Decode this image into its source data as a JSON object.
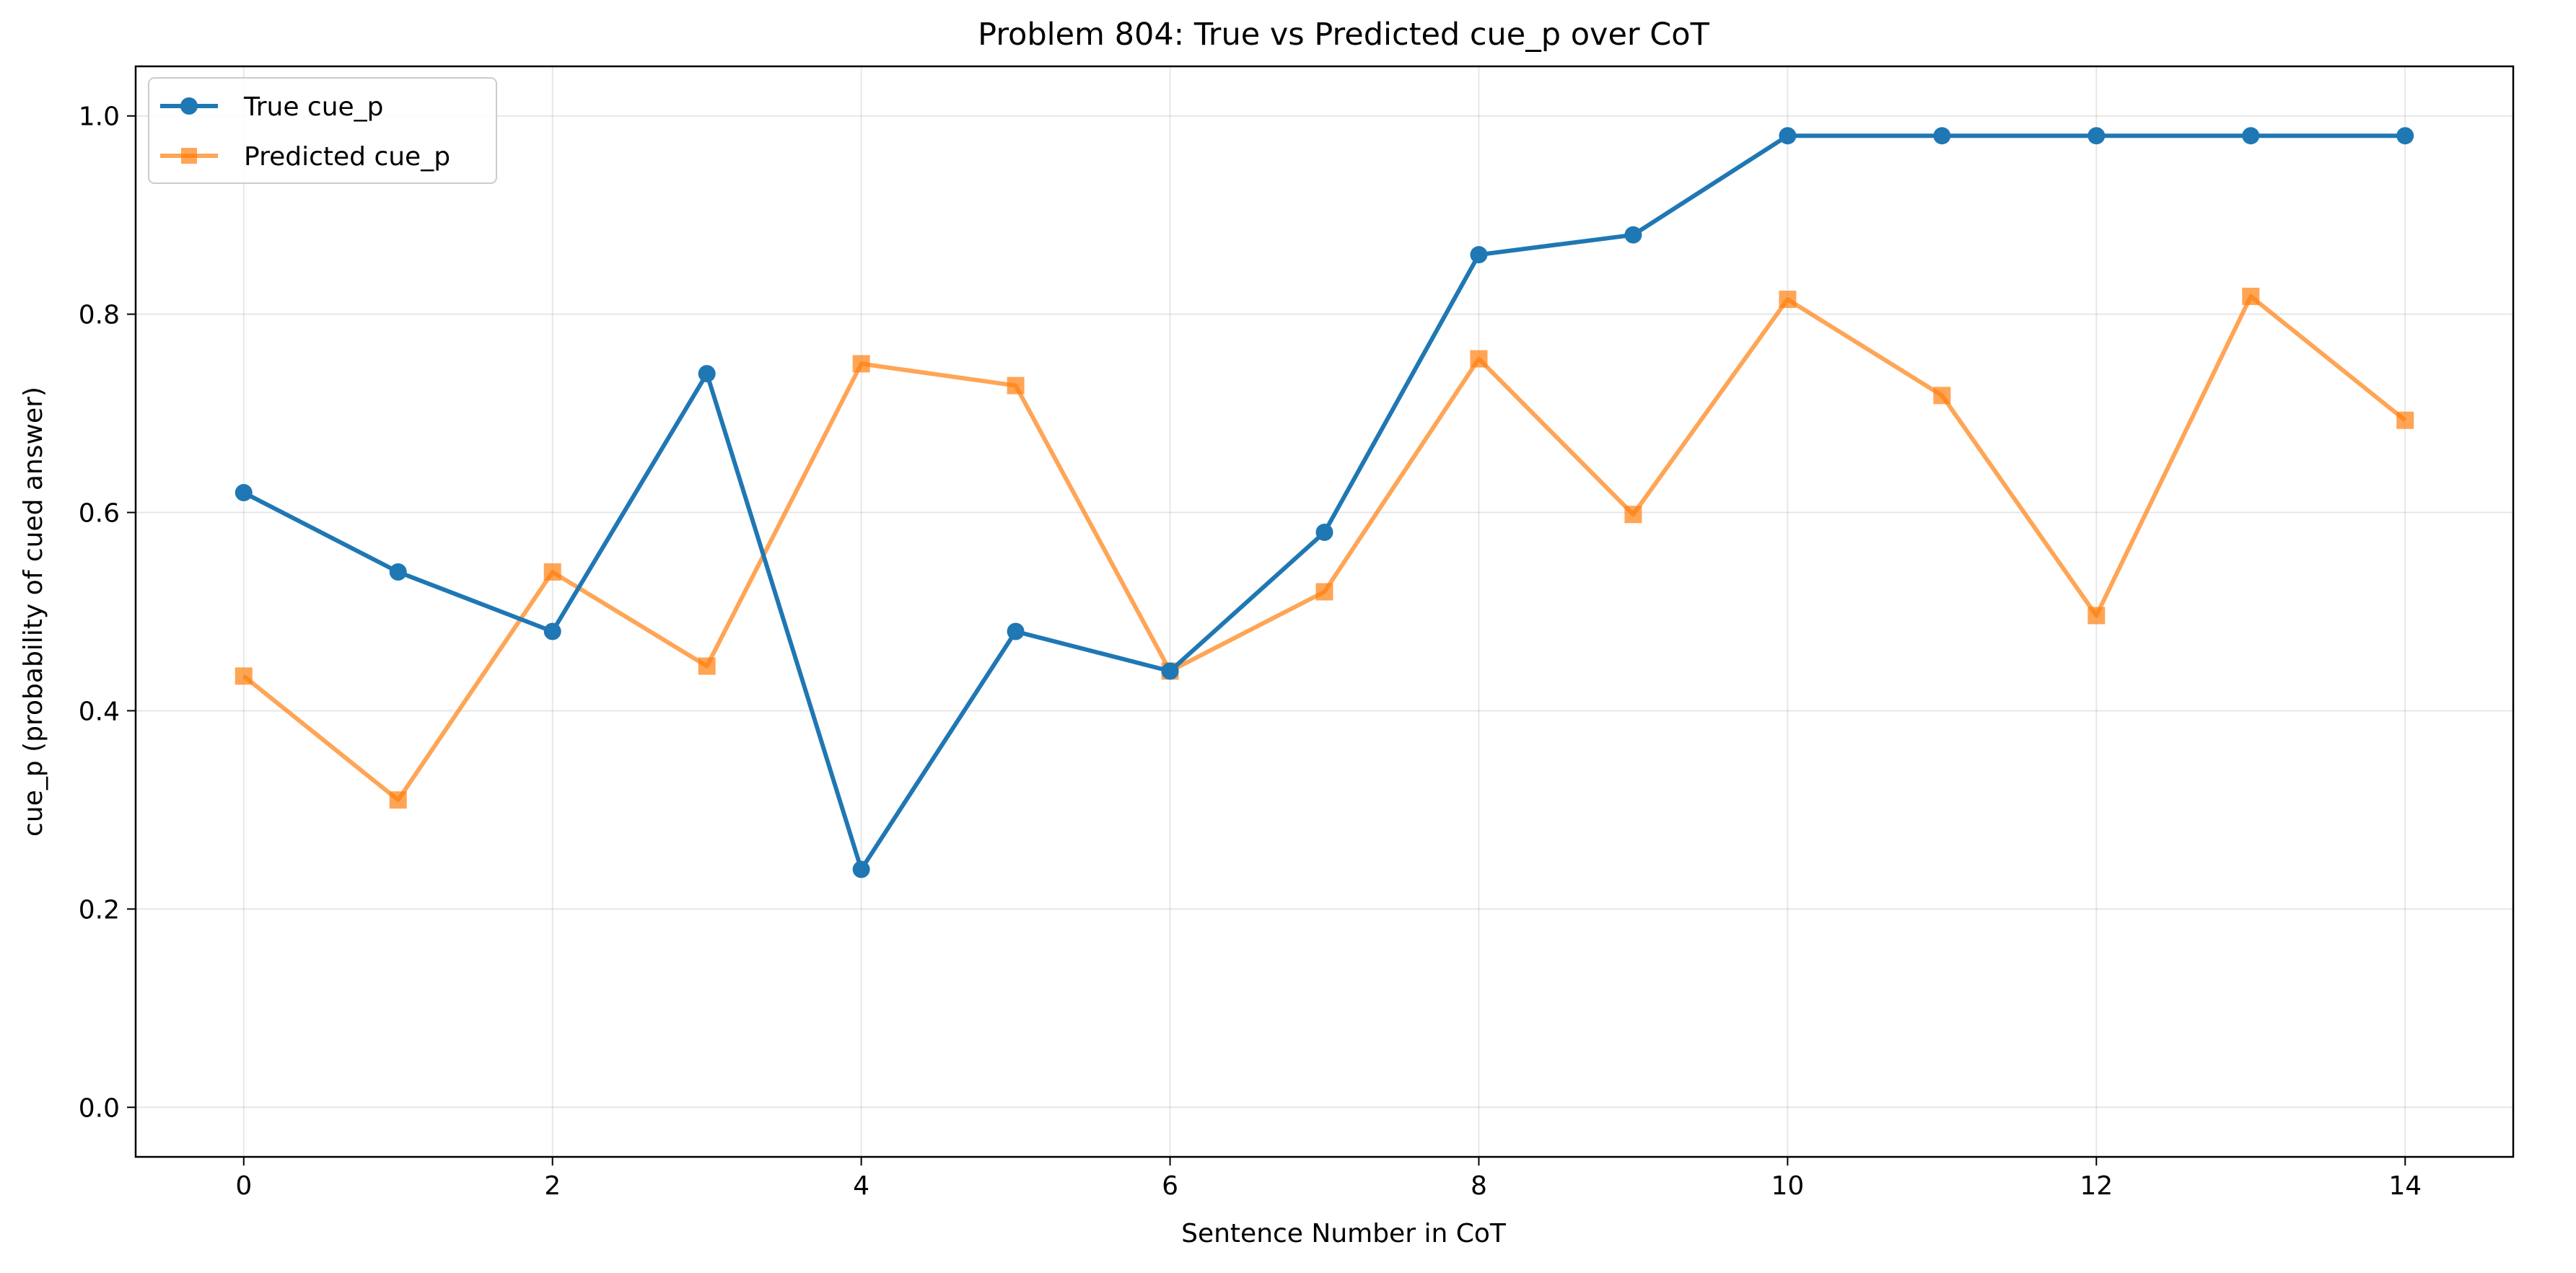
{
  "chart_data": {
    "type": "line",
    "title": "Problem 804: True vs Predicted cue_p over CoT",
    "xlabel": "Sentence Number in CoT",
    "ylabel": "cue_p (probability of cued answer)",
    "x": [
      0,
      1,
      2,
      3,
      4,
      5,
      6,
      7,
      8,
      9,
      10,
      11,
      12,
      13,
      14
    ],
    "xlim": [
      -0.7,
      14.7
    ],
    "ylim": [
      -0.05,
      1.05
    ],
    "xticks": [
      "0",
      "2",
      "4",
      "6",
      "8",
      "10",
      "12",
      "14"
    ],
    "xtick_values": [
      0,
      2,
      4,
      6,
      8,
      10,
      12,
      14
    ],
    "yticks": [
      "0.0",
      "0.2",
      "0.4",
      "0.6",
      "0.8",
      "1.0"
    ],
    "ytick_values": [
      0.0,
      0.2,
      0.4,
      0.6,
      0.8,
      1.0
    ],
    "grid": true,
    "legend_position": "upper-left",
    "series": [
      {
        "name": "True cue_p",
        "color": "#1f77b4",
        "marker": "circle",
        "values": [
          0.62,
          0.54,
          0.48,
          0.74,
          0.24,
          0.48,
          0.44,
          0.58,
          0.86,
          0.88,
          0.98,
          0.98,
          0.98,
          0.98,
          0.98
        ]
      },
      {
        "name": "Predicted cue_p",
        "color": "#ff7f0e",
        "marker": "square",
        "values": [
          0.435,
          0.31,
          0.54,
          0.445,
          0.75,
          0.728,
          0.44,
          0.52,
          0.755,
          0.598,
          0.815,
          0.718,
          0.496,
          0.818,
          0.693
        ]
      }
    ]
  }
}
